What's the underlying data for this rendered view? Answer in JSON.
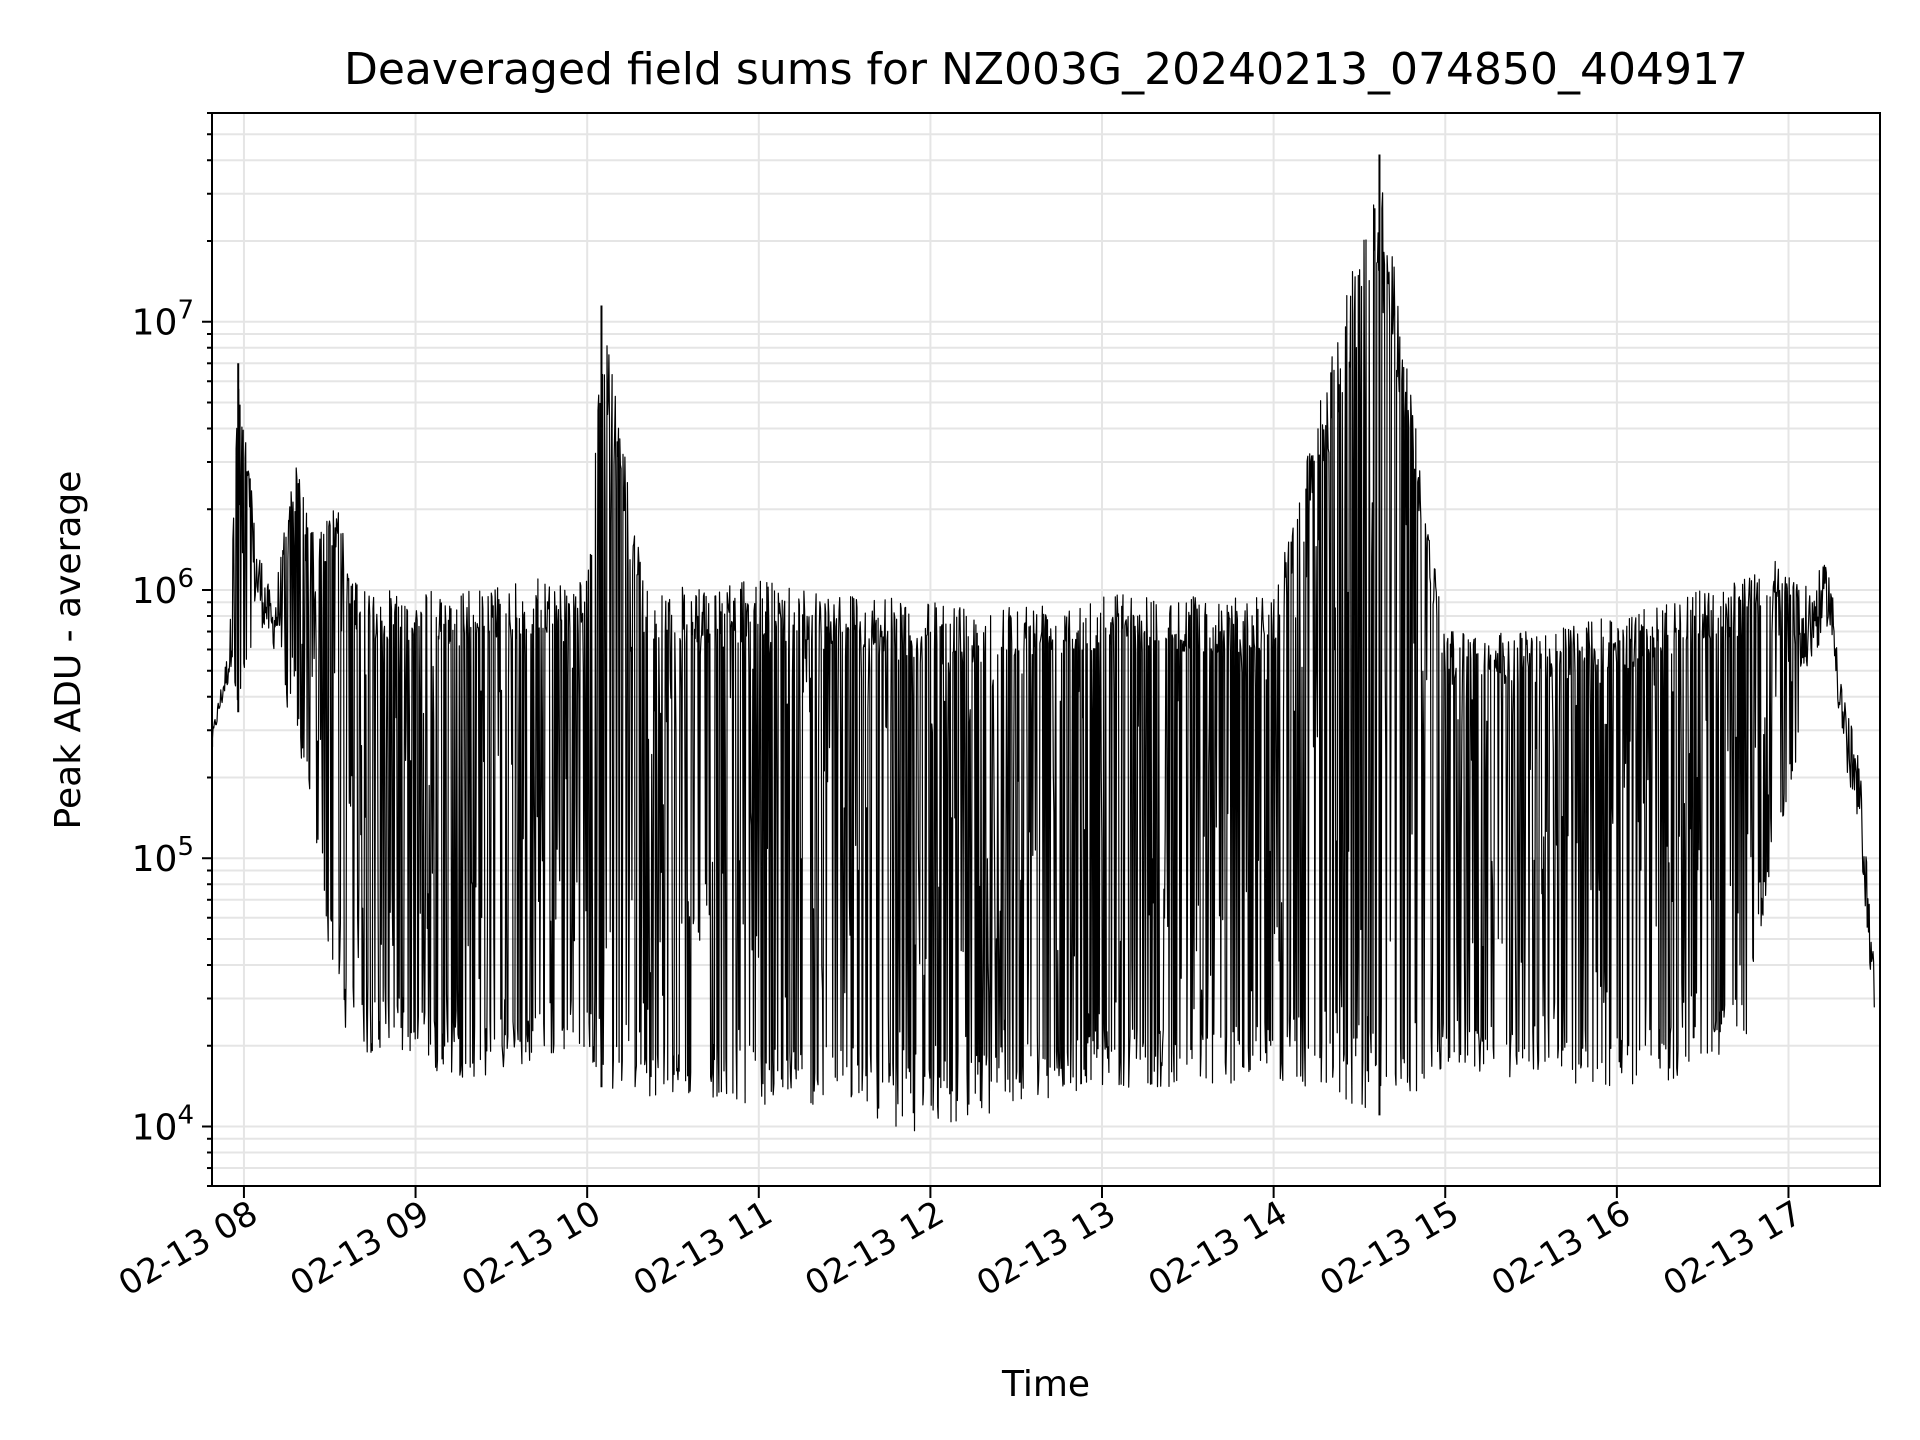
{
  "chart_data": {
    "type": "line",
    "title": "Deaveraged field sums for NZ003G_20240213_074850_404917",
    "xlabel": "Time",
    "ylabel": "Peak ADU - average",
    "yscale": "log",
    "ylim": [
      6000,
      60000000
    ],
    "xlim": [
      "2024-02-13 07:48:50",
      "2024-02-13 17:32:00"
    ],
    "x_ticks": [
      "02-13 08",
      "02-13 09",
      "02-13 10",
      "02-13 11",
      "02-13 12",
      "02-13 13",
      "02-13 14",
      "02-13 15",
      "02-13 16",
      "02-13 17"
    ],
    "y_ticks": [
      {
        "value": 10000,
        "base": "10",
        "exp": "4"
      },
      {
        "value": 100000,
        "base": "10",
        "exp": "5"
      },
      {
        "value": 1000000,
        "base": "10",
        "exp": "6"
      },
      {
        "value": 10000000,
        "base": "10",
        "exp": "7"
      }
    ],
    "grid": true,
    "line_color": "#000000",
    "grid_color": "#e5e5e5",
    "series": [
      {
        "x": [
          "2024-02-13 07:49:00",
          "2024-02-13 07:55:00",
          "2024-02-13 07:58:00",
          "2024-02-13 08:04:00",
          "2024-02-13 08:10:00",
          "2024-02-13 08:18:00",
          "2024-02-13 08:25:00",
          "2024-02-13 08:32:00",
          "2024-02-13 08:40:00",
          "2024-02-13 08:50:00",
          "2024-02-13 09:05:00",
          "2024-02-13 09:20:00",
          "2024-02-13 09:40:00",
          "2024-02-13 10:00:00",
          "2024-02-13 10:05:00",
          "2024-02-13 10:20:00",
          "2024-02-13 10:40:00",
          "2024-02-13 11:00:00",
          "2024-02-13 11:30:00",
          "2024-02-13 11:55:00",
          "2024-02-13 12:30:00",
          "2024-02-13 13:00:00",
          "2024-02-13 13:30:00",
          "2024-02-13 14:00:00",
          "2024-02-13 14:37:00",
          "2024-02-13 15:00:00",
          "2024-02-13 15:30:00",
          "2024-02-13 16:00:00",
          "2024-02-13 16:30:00",
          "2024-02-13 16:45:00",
          "2024-02-13 16:55:00",
          "2024-02-13 17:05:00",
          "2024-02-13 17:14:00",
          "2024-02-13 17:20:00",
          "2024-02-13 17:25:00",
          "2024-02-13 17:30:00"
        ],
        "y_high": [
          300000,
          650000,
          7000000,
          1700000,
          900000,
          3000000,
          1500000,
          2200000,
          1000000,
          1000000,
          1000000,
          1000000,
          1100000,
          1100000,
          11500000,
          1100000,
          1000000,
          1100000,
          1000000,
          900000,
          900000,
          1000000,
          950000,
          950000,
          42000000,
          700000,
          700000,
          800000,
          1000000,
          1100000,
          1300000,
          1000000,
          1300000,
          400000,
          220000,
          40000
        ],
        "y_low": [
          260000,
          400000,
          350000,
          600000,
          500000,
          300000,
          120000,
          28000,
          18000,
          20000,
          16000,
          15000,
          17000,
          20000,
          14000,
          13000,
          13000,
          12000,
          12000,
          9300,
          12000,
          14000,
          14000,
          15000,
          11000,
          16000,
          15000,
          14000,
          15000,
          20000,
          100000,
          300000,
          600000,
          150000,
          90000,
          20000
        ]
      }
    ]
  }
}
